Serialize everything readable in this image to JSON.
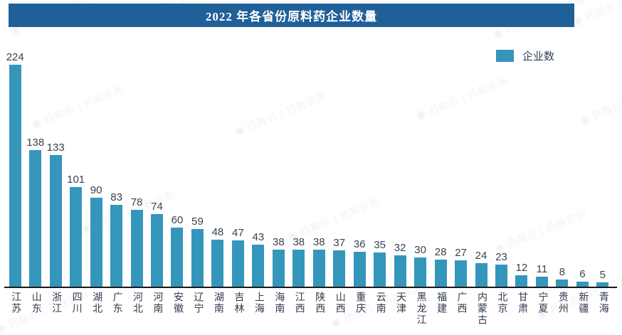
{
  "title": "2022 年各省份原料药企业数量",
  "legend": {
    "label": "企业数"
  },
  "watermark": {
    "text": "药融云 | 药融咨询"
  },
  "colors": {
    "banner_bg": "#1f6098",
    "bar": "#3596bc",
    "value_label": "#3a4150",
    "axis_label": "#2f3b4d",
    "axis_line": "#1a1a1a"
  },
  "chart_data": {
    "type": "bar",
    "title": "2022 年各省份原料药企业数量",
    "categories": [
      "江苏",
      "山东",
      "浙江",
      "四川",
      "湖北",
      "广东",
      "河北",
      "河南",
      "安徽",
      "辽宁",
      "湖南",
      "吉林",
      "上海",
      "海南",
      "江西",
      "陕西",
      "山西",
      "重庆",
      "云南",
      "天津",
      "黑龙江",
      "福建",
      "广西",
      "内蒙古",
      "北京",
      "甘肃",
      "宁夏",
      "贵州",
      "新疆",
      "青海"
    ],
    "series": [
      {
        "name": "企业数",
        "values": [
          224,
          138,
          133,
          101,
          90,
          83,
          78,
          74,
          60,
          59,
          48,
          47,
          43,
          38,
          38,
          38,
          37,
          36,
          35,
          32,
          30,
          28,
          27,
          24,
          23,
          12,
          11,
          8,
          6,
          5
        ]
      }
    ],
    "xlabel": "",
    "ylabel": "",
    "ylim": [
      0,
      240
    ],
    "grid": false,
    "value_labels_shown": true,
    "legend_position": "top-right",
    "bar_color": "#3596bc"
  }
}
